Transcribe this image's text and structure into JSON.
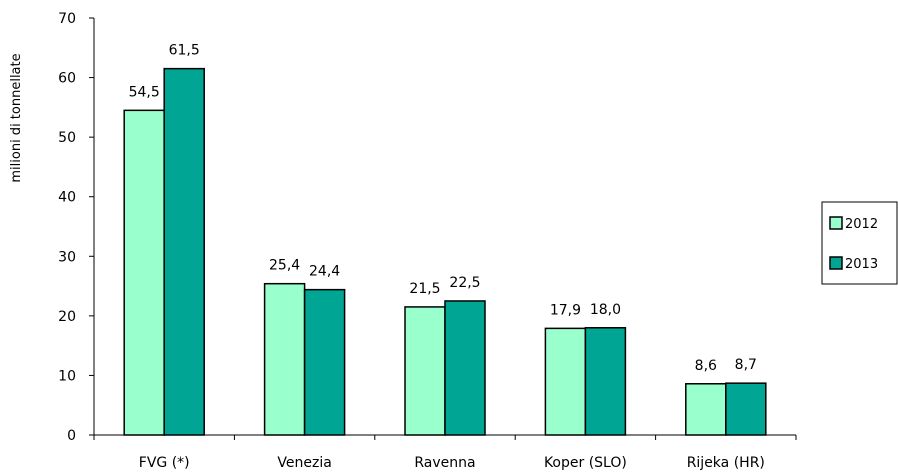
{
  "chart_data": {
    "type": "bar",
    "title": "",
    "xlabel": "",
    "ylabel": "milioni di tonnellate",
    "ylim": [
      0,
      70
    ],
    "yticks": [
      0,
      10,
      20,
      30,
      40,
      50,
      60,
      70
    ],
    "grid": false,
    "legend_position": "right",
    "categories": [
      "FVG (*)",
      "Venezia",
      "Ravenna",
      "Koper (SLO)",
      "Rijeka (HR)"
    ],
    "series": [
      {
        "name": "2012",
        "color": "#99ffcc",
        "values": [
          54.5,
          25.4,
          21.5,
          17.9,
          8.6
        ],
        "labels": [
          "54,5",
          "25,4",
          "21,5",
          "17,9",
          "8,6"
        ]
      },
      {
        "name": "2013",
        "color": "#00a693",
        "values": [
          61.5,
          24.4,
          22.5,
          18.0,
          8.7
        ],
        "labels": [
          "61,5",
          "24,4",
          "22,5",
          "18,0",
          "8,7"
        ]
      }
    ]
  }
}
